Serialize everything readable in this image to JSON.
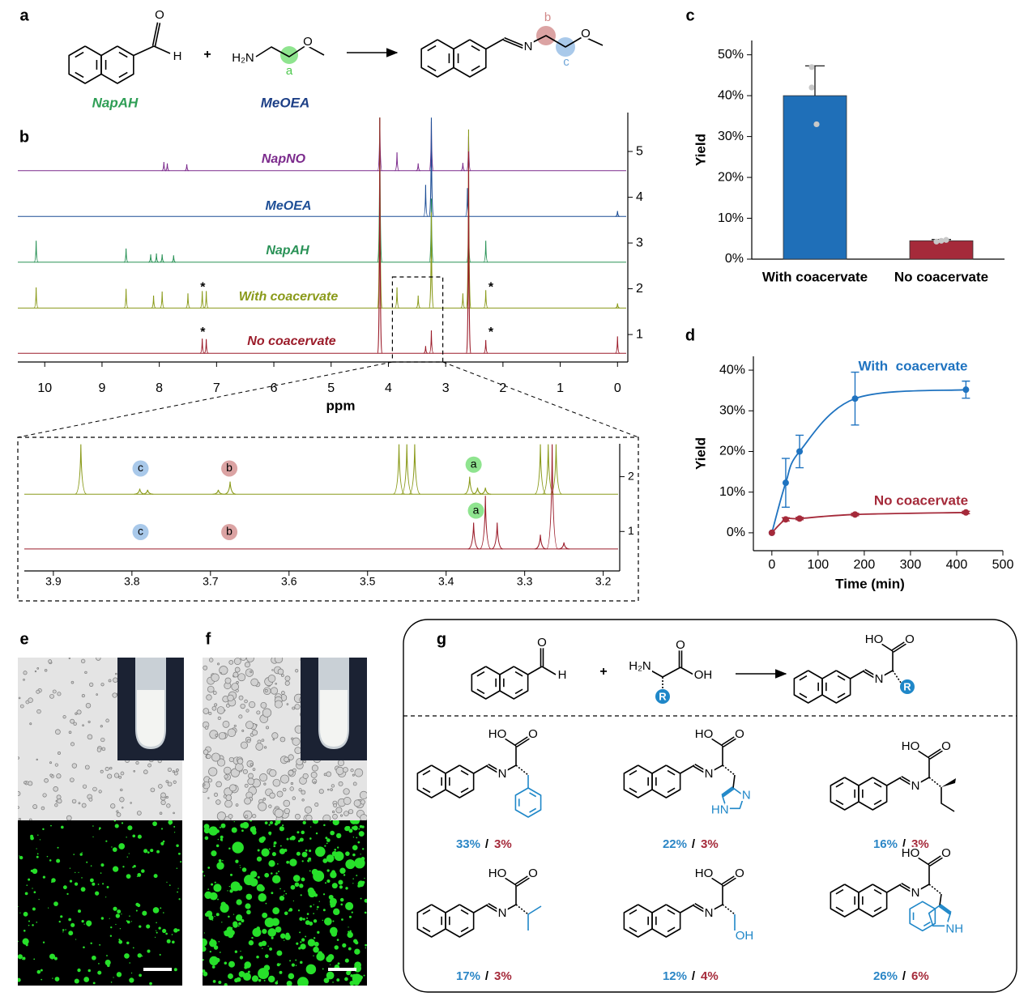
{
  "panel_labels": {
    "a": "a",
    "b": "b",
    "c": "c",
    "d": "d",
    "e": "e",
    "f": "f",
    "g": "g"
  },
  "scheme_a": {
    "reactant1": "NapAH",
    "reactant2": "MeOEA",
    "plus": "+",
    "aldehyde_O": "O",
    "aldehyde_H": "H",
    "amine": "H₂N",
    "ether_O": "O",
    "imine_N": "N",
    "product_O": "O",
    "site_a": "a",
    "site_b": "b",
    "site_c": "c"
  },
  "chart_data": [
    {
      "type": "nmr",
      "xlabel": "ppm",
      "xlim": [
        10.47,
        -0.18
      ],
      "xticks": [
        10,
        9,
        8,
        7,
        6,
        5,
        4,
        3,
        2,
        1,
        0
      ],
      "ylim": [
        0.4,
        5.85
      ],
      "yticks": [
        1,
        2,
        3,
        4,
        5
      ],
      "series": [
        {
          "name": "NapNO",
          "color": "#7b2a8c",
          "baseline": 4.58,
          "x": [
            7.92,
            7.86,
            7.52,
            4.15,
            3.85,
            3.48,
            3.25,
            2.7,
            2.6
          ],
          "values": [
            4.77,
            4.74,
            4.72,
            5.74,
            4.98,
            4.74,
            5.65,
            4.75,
            5.33
          ]
        },
        {
          "name": "MeOEA",
          "color": "#1d4e96",
          "baseline": 3.58,
          "x": [
            3.35,
            3.25,
            2.62,
            0
          ],
          "values": [
            4.27,
            5.74,
            4.2,
            3.7
          ]
        },
        {
          "name": "NapAH",
          "color": "#2a9257",
          "baseline": 2.58,
          "x": [
            10.15,
            8.58,
            8.15,
            8.05,
            7.95,
            7.75,
            4.15,
            3.25,
            2.6,
            2.3
          ],
          "values": [
            3.05,
            2.88,
            2.75,
            2.77,
            2.75,
            2.73,
            5.74,
            3.97,
            3.5,
            3.05
          ]
        },
        {
          "name": "With coacervate",
          "color": "#8a9a1a",
          "baseline": 1.58,
          "x": [
            10.15,
            8.58,
            8.1,
            7.95,
            7.5,
            7.25,
            7.18,
            4.15,
            3.85,
            3.48,
            3.25,
            2.7,
            2.6,
            2.3,
            0
          ],
          "values": [
            2.03,
            2.0,
            1.85,
            1.94,
            1.9,
            1.95,
            1.95,
            5.74,
            2.03,
            1.85,
            3.67,
            1.9,
            5.48,
            1.97,
            1.68
          ]
        },
        {
          "name": "No coacervate",
          "color": "#9b1c2a",
          "baseline": 0.59,
          "x": [
            7.25,
            7.18,
            4.15,
            3.35,
            3.25,
            2.6,
            2.3,
            0
          ],
          "values": [
            0.91,
            0.9,
            5.74,
            0.75,
            1.09,
            5.0,
            0.88,
            0.96
          ]
        }
      ],
      "annotations": [
        {
          "text": "*",
          "x": 7.24,
          "y": 2.08
        },
        {
          "text": "*",
          "x": 2.21,
          "y": 2.08
        },
        {
          "text": "*",
          "x": 7.24,
          "y": 1.09
        },
        {
          "text": "*",
          "x": 2.21,
          "y": 1.09
        }
      ]
    },
    {
      "type": "nmr",
      "xlim": [
        3.937,
        3.179
      ],
      "xticks": [
        3.9,
        3.8,
        3.7,
        3.6,
        3.5,
        3.4,
        3.3,
        3.2
      ],
      "ylim": [
        0.28,
        2.6
      ],
      "yticks": [
        1,
        2
      ],
      "series": [
        {
          "color": "#8a9a1a",
          "baseline": 1.68,
          "x": [
            3.865,
            3.79,
            3.78,
            3.69,
            3.675,
            3.46,
            3.45,
            3.44,
            3.37,
            3.36,
            3.35,
            3.28,
            3.27,
            3.26
          ],
          "values": [
            2.59,
            1.78,
            1.76,
            1.76,
            1.91,
            2.59,
            2.59,
            2.59,
            2.0,
            1.8,
            1.8,
            2.59,
            2.59,
            2.59
          ]
        },
        {
          "color": "#9b1c2a",
          "baseline": 0.68,
          "x": [
            3.365,
            3.35,
            3.335,
            3.28,
            3.265,
            3.25
          ],
          "values": [
            1.16,
            1.65,
            1.16,
            0.94,
            2.59,
            0.8
          ]
        }
      ],
      "annotations": [
        {
          "text": "c",
          "x": 3.789,
          "y": 2.15,
          "color": "#a9c9ea"
        },
        {
          "text": "b",
          "x": 3.676,
          "y": 2.15,
          "color": "#dba3a3"
        },
        {
          "text": "a",
          "x": 3.365,
          "y": 2.22,
          "color": "#8fe48f"
        },
        {
          "text": "c",
          "x": 3.789,
          "y": 0.99,
          "color": "#a9c9ea"
        },
        {
          "text": "b",
          "x": 3.676,
          "y": 0.99,
          "color": "#dba3a3"
        },
        {
          "text": "a",
          "x": 3.362,
          "y": 1.38,
          "color": "#8fe48f"
        }
      ]
    },
    {
      "type": "bar",
      "ylabel": "Yield",
      "categories": [
        "With coacervate",
        "No coacervate"
      ],
      "values": [
        40,
        4.5
      ],
      "errors": [
        7.3,
        0.3
      ],
      "points": [
        [
          47,
          42,
          33
        ],
        [
          4.3,
          4.5,
          4.7
        ]
      ],
      "colors": [
        "#1f6fb8",
        "#a52a3a"
      ],
      "ylim": [
        0,
        53.5
      ],
      "yticks": [
        {
          "value": 0,
          "label": "0%"
        },
        {
          "value": 10,
          "label": "10%"
        },
        {
          "value": 20,
          "label": "20%"
        },
        {
          "value": 30,
          "label": "30%"
        },
        {
          "value": 40,
          "label": "40%"
        },
        {
          "value": 50,
          "label": "50%"
        }
      ]
    },
    {
      "type": "line",
      "xlabel": "Time (min)",
      "ylabel": "Yield",
      "x": [
        0,
        30,
        60,
        180,
        420
      ],
      "series": [
        {
          "name": "With  coacervate",
          "color": "#1f73c0",
          "values": [
            0,
            12.3,
            20,
            33,
            35.2
          ],
          "errors": [
            0,
            6,
            4,
            6.5,
            2.1
          ]
        },
        {
          "name": "No coacervate",
          "color": "#a52a3a",
          "values": [
            0,
            3.3,
            3.5,
            4.5,
            5
          ],
          "errors": [
            0,
            0.4,
            0.3,
            0.3,
            0.3
          ]
        }
      ],
      "xlim": [
        -40,
        500
      ],
      "xticks": [
        0,
        100,
        200,
        300,
        400,
        500
      ],
      "ylim": [
        -4.4,
        43.4
      ],
      "yticks": [
        {
          "value": 0,
          "label": "0%"
        },
        {
          "value": 10,
          "label": "10%"
        },
        {
          "value": 20,
          "label": "20%"
        },
        {
          "value": 30,
          "label": "30%"
        },
        {
          "value": 40,
          "label": "40%"
        }
      ]
    }
  ],
  "scheme_g": {
    "aldehyde_O": "O",
    "aldehyde_H": "H",
    "plus": "+",
    "amine": "H₂N",
    "acid_O": "O",
    "acid_OH": "OH",
    "R": "R",
    "product_HO": "HO",
    "product_O": "O",
    "product_N": "N",
    "product_R": "R",
    "products": [
      {
        "yield_with": "33%",
        "sep": "/",
        "yield_without": "3%",
        "atoms": [
          "HO",
          "O",
          "N"
        ]
      },
      {
        "yield_with": "22%",
        "sep": "/",
        "yield_without": "3%",
        "atoms": [
          "HO",
          "O",
          "N",
          "N",
          "HN"
        ]
      },
      {
        "yield_with": "16%",
        "sep": "/",
        "yield_without": "3%",
        "atoms": [
          "HO",
          "O",
          "N"
        ]
      },
      {
        "yield_with": "17%",
        "sep": "/",
        "yield_without": "3%",
        "atoms": [
          "HO",
          "O",
          "N"
        ]
      },
      {
        "yield_with": "12%",
        "sep": "/",
        "yield_without": "4%",
        "atoms": [
          "HO",
          "O",
          "N",
          "OH"
        ]
      },
      {
        "yield_with": "26%",
        "sep": "/",
        "yield_without": "6%",
        "atoms": [
          "HO",
          "O",
          "N",
          "NH"
        ]
      }
    ]
  }
}
